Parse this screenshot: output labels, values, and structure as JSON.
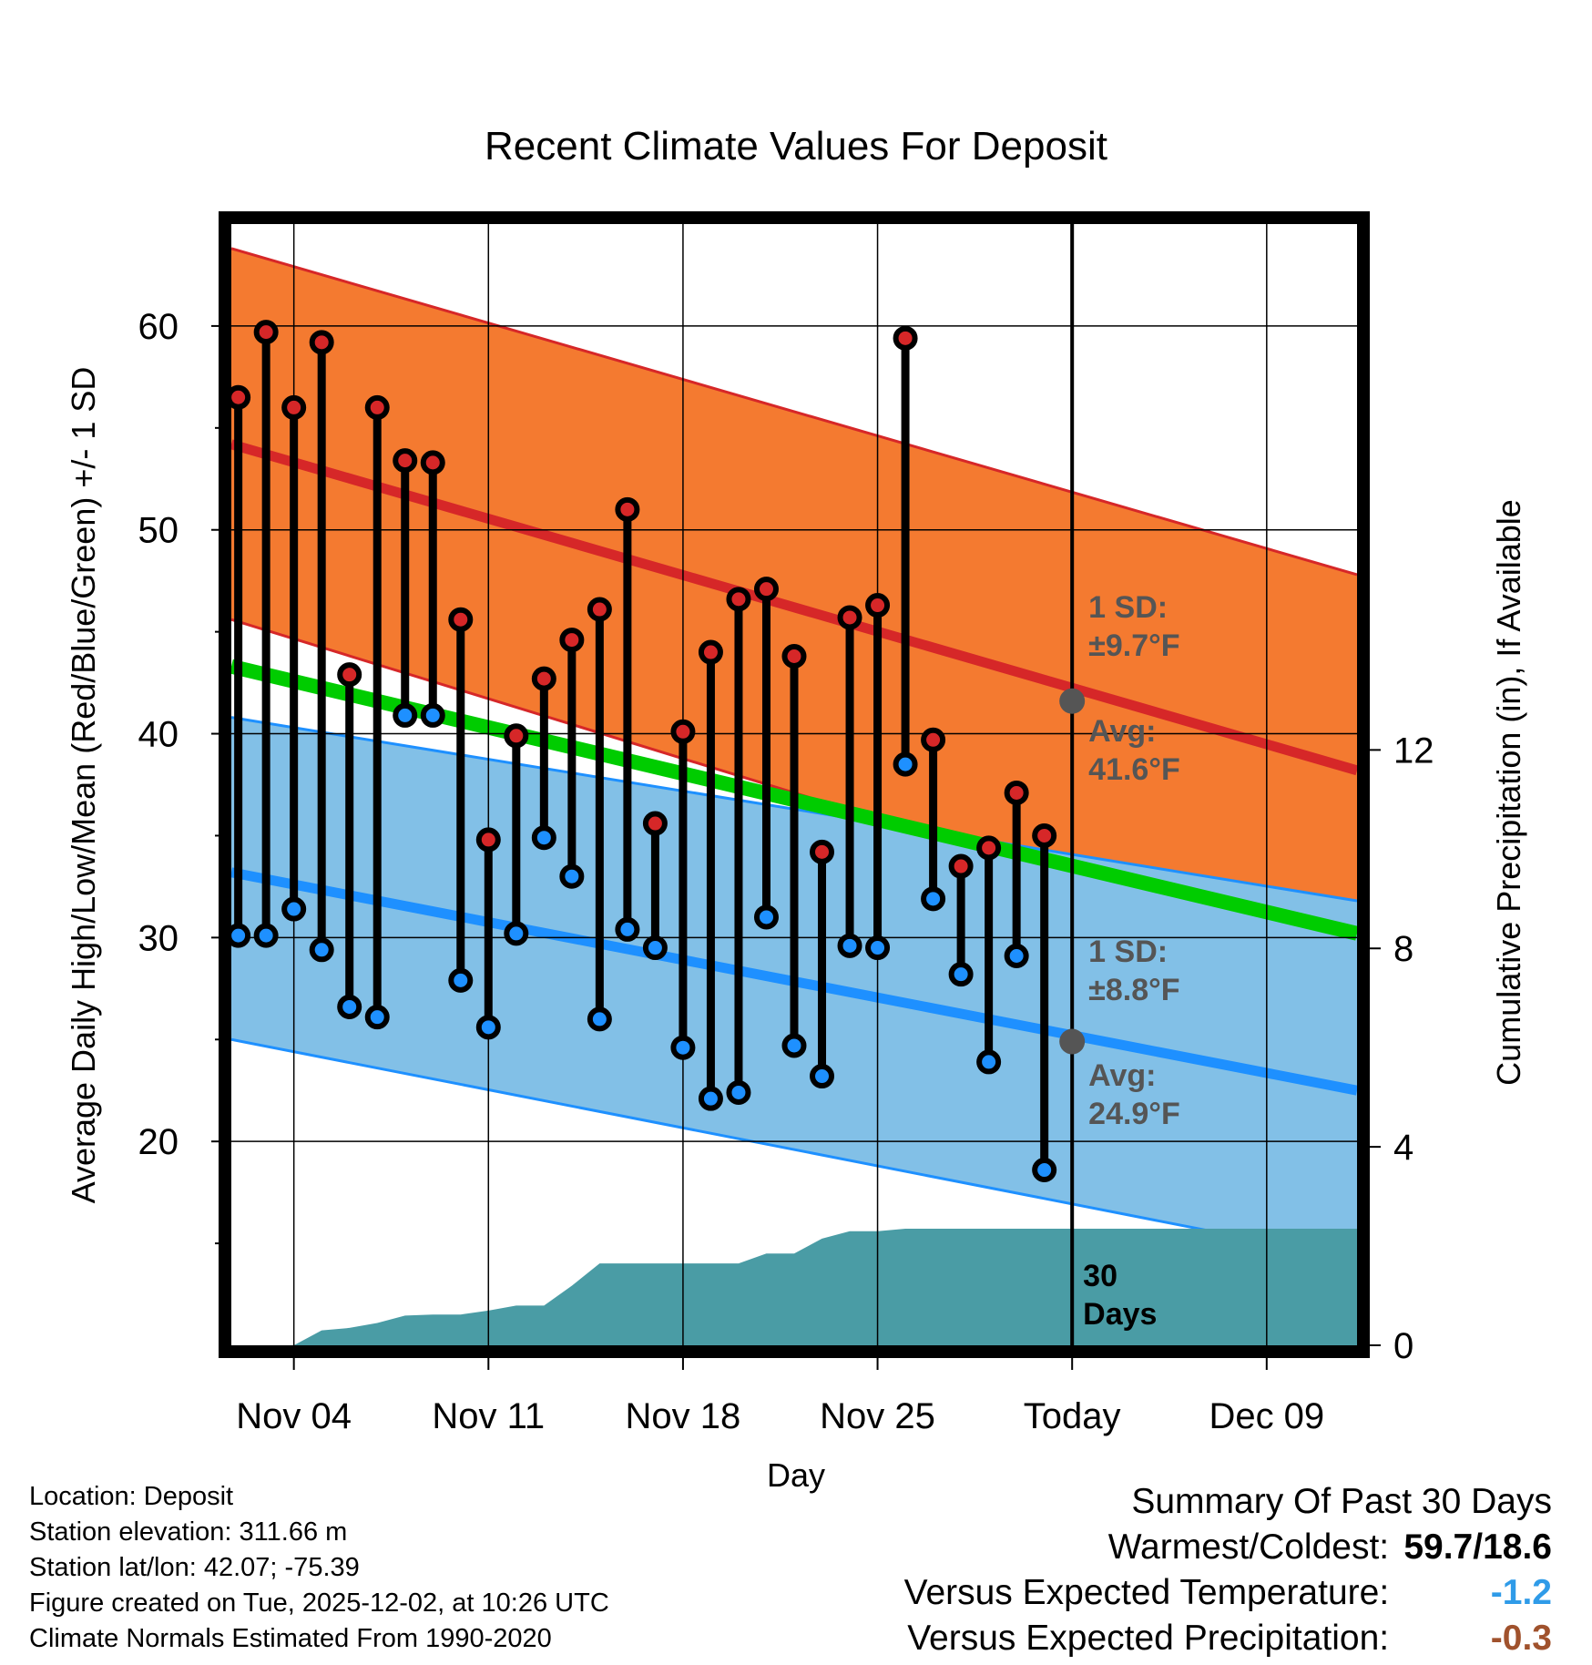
{
  "colors": {
    "high_band": "#f47a30",
    "high_line": "#d62728",
    "low_band": "#82c0e7",
    "low_line": "#1e90ff",
    "mean_line": "#00cc00",
    "dark_red": "#8b0d0d",
    "precip": "#4a9ca5",
    "annotation": "#555555",
    "temp_anomaly": "#2f9be8",
    "precip_anomaly": "#a0522d"
  },
  "chart_data": {
    "type": "line",
    "title": "Recent Climate Values For Deposit",
    "xlabel": "Day",
    "ylabel": "Average Daily High/Low/Mean (Red/Blue/Green) +/- 1 SD",
    "y2label": "Cumulative Precipitation (in), If Available",
    "xlim": [
      -2.25,
      38.25
    ],
    "ylim": [
      10,
      65
    ],
    "y2lim": [
      0,
      22.6
    ],
    "x_ticks": [
      0,
      7,
      14,
      21,
      28,
      35
    ],
    "x_tick_labels": [
      "Nov 04",
      "Nov 11",
      "Nov 18",
      "Nov 25",
      "Today",
      "Dec 09"
    ],
    "y_ticks": [
      20,
      30,
      40,
      50,
      60
    ],
    "y_tick_labels": [
      "20",
      "30",
      "40",
      "50",
      "60"
    ],
    "y_minor_ticks": [
      15,
      25,
      35,
      45,
      55
    ],
    "y2_ticks": [
      0,
      4,
      8,
      12
    ],
    "y2_tick_labels": [
      "0",
      "4",
      "8",
      "12"
    ],
    "today_x": 28,
    "normals": {
      "x": [
        -2.25,
        38.25
      ],
      "high_avg": [
        54.2,
        38.2
      ],
      "high_sd_upper": [
        63.8,
        47.8
      ],
      "high_sd_lower": [
        45.6,
        28.6
      ],
      "low_avg": [
        33.2,
        22.5
      ],
      "low_sd_upper": [
        40.8,
        31.8
      ],
      "low_sd_lower": [
        25.0,
        14.2
      ],
      "mean_avg": [
        43.3,
        30.2
      ]
    },
    "daily": {
      "x": [
        -2,
        -1,
        0,
        1,
        2,
        3,
        4,
        5,
        6,
        7,
        8,
        9,
        10,
        11,
        12,
        13,
        14,
        15,
        16,
        17,
        18,
        19,
        20,
        21,
        22,
        23,
        24,
        25,
        26,
        27
      ],
      "high": [
        56.5,
        59.7,
        56.0,
        59.2,
        42.9,
        56.0,
        53.4,
        53.3,
        45.6,
        34.8,
        39.9,
        42.7,
        44.6,
        46.1,
        51.0,
        35.6,
        40.1,
        44.0,
        46.6,
        47.1,
        43.8,
        34.2,
        45.7,
        46.3,
        59.4,
        39.7,
        33.5,
        34.4,
        37.1,
        35.0
      ],
      "low": [
        30.1,
        30.1,
        31.4,
        29.4,
        26.6,
        26.1,
        40.9,
        40.9,
        27.9,
        25.6,
        30.2,
        34.9,
        33.0,
        26.0,
        30.4,
        29.5,
        24.6,
        22.1,
        22.4,
        31.0,
        24.7,
        23.2,
        29.6,
        29.5,
        38.5,
        31.9,
        28.2,
        23.9,
        29.1,
        18.6
      ]
    },
    "precip_cumulative": {
      "x": [
        -2.25,
        -1,
        0,
        1,
        2,
        3,
        4,
        5,
        6,
        7,
        8,
        9,
        10,
        11,
        12,
        13,
        14,
        15,
        16,
        17,
        18,
        19,
        20,
        21,
        22,
        23,
        24,
        25,
        28,
        38.25
      ],
      "y": [
        0,
        0,
        0,
        0.3,
        0.35,
        0.45,
        0.6,
        0.62,
        0.62,
        0.7,
        0.8,
        0.8,
        1.2,
        1.65,
        1.65,
        1.65,
        1.65,
        1.65,
        1.65,
        1.85,
        1.85,
        2.15,
        2.3,
        2.3,
        2.35,
        2.35,
        2.35,
        2.35,
        2.35,
        2.35
      ]
    },
    "annotations": {
      "high_sd_label": "1 SD:",
      "high_sd_value": "±9.7°F",
      "high_avg_label": "Avg:",
      "high_avg_value": "41.6°F",
      "high_avg_today": 41.6,
      "low_sd_label": "1 SD:",
      "low_sd_value": "±8.8°F",
      "low_avg_label": "Avg:",
      "low_avg_value": "24.9°F",
      "low_avg_today": 24.9,
      "days_label_1": "30",
      "days_label_2": "Days"
    }
  },
  "info": {
    "location": "Location: Deposit",
    "elevation": "Station elevation: 311.66 m",
    "latlon": "Station lat/lon: 42.07; -75.39",
    "created": "Figure created on Tue, 2025-12-02, at 10:26 UTC",
    "normals": "Climate Normals Estimated From 1990-2020"
  },
  "summary": {
    "heading": "Summary Of Past 30 Days",
    "warm_cold_label": "Warmest/Coldest:",
    "warm_cold_value": "59.7/18.6",
    "temp_label": "Versus Expected Temperature:",
    "temp_value": "-1.2",
    "precip_label": "Versus Expected Precipitation:",
    "precip_value": "-0.3"
  }
}
